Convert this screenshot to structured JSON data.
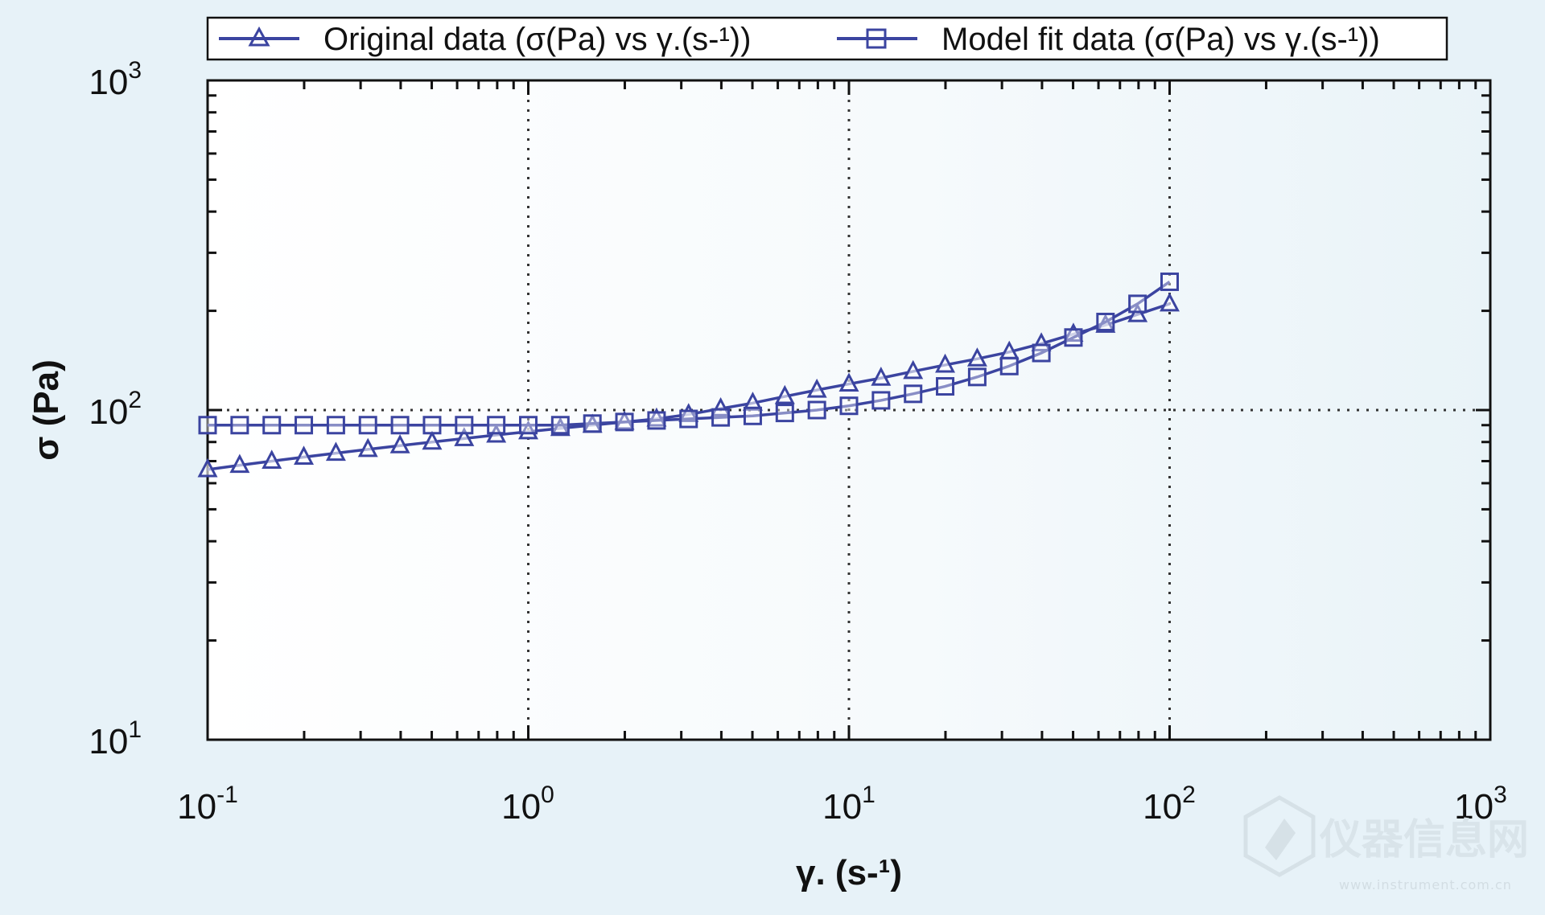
{
  "chart_data": {
    "type": "line",
    "x_scale": "log",
    "y_scale": "log",
    "xlim": [
      0.1,
      1000
    ],
    "ylim": [
      10,
      1000
    ],
    "xlabel": "γ. (s-¹)",
    "ylabel": "σ (Pa)",
    "x_ticks": [
      {
        "base": "10",
        "exp": "-1"
      },
      {
        "base": "10",
        "exp": "0"
      },
      {
        "base": "10",
        "exp": "1"
      },
      {
        "base": "10",
        "exp": "2"
      },
      {
        "base": "10",
        "exp": "3"
      }
    ],
    "y_ticks": [
      {
        "base": "10",
        "exp": "1"
      },
      {
        "base": "10",
        "exp": "2"
      },
      {
        "base": "10",
        "exp": "3"
      }
    ],
    "grid": "dotted at major ticks",
    "legend_position": "top",
    "series": [
      {
        "name": "Original data (σ(Pa) vs γ.(s-¹))",
        "marker": "triangle",
        "color": "#3b44a0",
        "x": [
          0.1,
          0.1259,
          0.1585,
          0.1995,
          0.2512,
          0.3162,
          0.3981,
          0.5012,
          0.631,
          0.7943,
          1.0,
          1.259,
          1.585,
          1.995,
          2.512,
          3.162,
          3.981,
          5.012,
          6.31,
          7.943,
          10.0,
          12.59,
          15.85,
          19.95,
          25.12,
          31.62,
          39.81,
          50.12,
          63.1,
          79.43,
          100.0
        ],
        "y": [
          66,
          68,
          70,
          72,
          74,
          76,
          78,
          80,
          82,
          84,
          86,
          88,
          90,
          92,
          94,
          97,
          101,
          105,
          110,
          115,
          120,
          125,
          131,
          137,
          143,
          150,
          159,
          170,
          181,
          195,
          210
        ]
      },
      {
        "name": "Model fit data (σ(Pa) vs γ.(s-¹))",
        "marker": "square",
        "color": "#3b44a0",
        "x": [
          0.1,
          0.1259,
          0.1585,
          0.1995,
          0.2512,
          0.3162,
          0.3981,
          0.5012,
          0.631,
          0.7943,
          1.0,
          1.259,
          1.585,
          1.995,
          2.512,
          3.162,
          3.981,
          5.012,
          6.31,
          7.943,
          10.0,
          12.59,
          15.85,
          19.95,
          25.12,
          31.62,
          39.81,
          50.12,
          63.1,
          79.43,
          100.0
        ],
        "y": [
          90,
          90,
          90,
          90,
          90,
          90,
          90,
          90,
          90,
          90,
          90,
          90,
          91,
          92,
          93,
          94,
          95,
          96,
          98,
          100,
          103,
          107,
          112,
          118,
          126,
          136,
          149,
          166,
          185,
          210,
          245
        ]
      }
    ]
  },
  "watermark": {
    "text_cn": "仪器信息网",
    "text_en": "www.instrument.com.cn"
  }
}
